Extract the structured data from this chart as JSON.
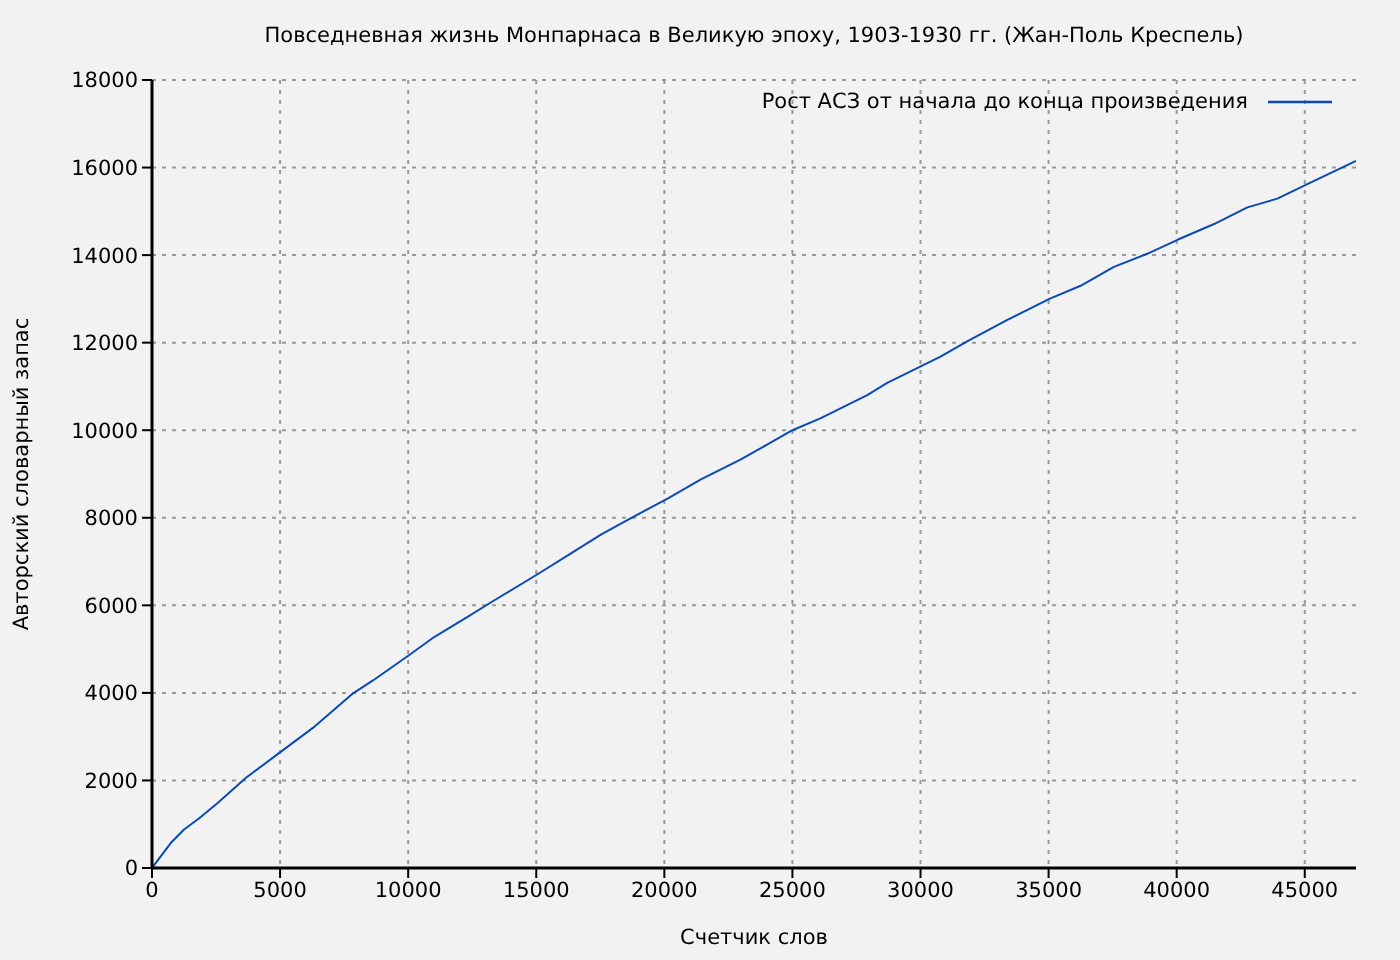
{
  "chart_data": {
    "type": "line",
    "title": "Повседневная жизнь Монпарнаса в Великую эпоху, 1903-1930 гг. (Жан-Поль Креспель)",
    "xlabel": "Счетчик слов",
    "ylabel": "Авторский словарный запас",
    "x": [
      0,
      730,
      1250,
      1830,
      2550,
      3670,
      4970,
      6280,
      7850,
      8640,
      10030,
      11000,
      12300,
      13350,
      15050,
      16230,
      17540,
      18590,
      20160,
      21410,
      22970,
      24010,
      25000,
      26090,
      27920,
      28700,
      30780,
      31820,
      33390,
      35030,
      36250,
      37550,
      38850,
      40030,
      41460,
      42760,
      43930,
      45100,
      47000
    ],
    "series": [
      {
        "name": "Рост АСЗ от начала до конца произведения",
        "color": "#0a4ab8",
        "values": [
          0,
          570,
          880,
          1130,
          1480,
          2060,
          2630,
          3200,
          3990,
          4290,
          4860,
          5270,
          5730,
          6110,
          6710,
          7140,
          7620,
          7960,
          8450,
          8870,
          9330,
          9670,
          10000,
          10270,
          10800,
          11080,
          11680,
          12030,
          12520,
          13000,
          13300,
          13730,
          14030,
          14350,
          14710,
          15090,
          15290,
          15620,
          16150
        ]
      }
    ],
    "xlim": [
      0,
      47000
    ],
    "xticks": [
      0,
      5000,
      10000,
      15000,
      20000,
      25000,
      30000,
      35000,
      40000,
      45000
    ],
    "ylim": [
      0,
      18000
    ],
    "yticks": [
      0,
      2000,
      4000,
      6000,
      8000,
      10000,
      12000,
      14000,
      16000,
      18000
    ],
    "grid": true,
    "legend": "top right"
  }
}
